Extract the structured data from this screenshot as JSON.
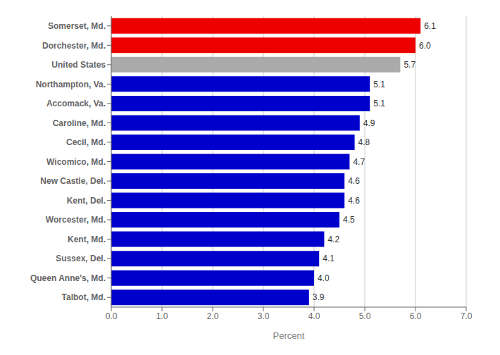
{
  "chart_data": {
    "type": "bar",
    "orientation": "horizontal",
    "categories": [
      "Talbot, Md.",
      "Queen Anne's, Md.",
      "Sussex, Del.",
      "Kent, Md.",
      "Worcester, Md.",
      "Kent, Del.",
      "New Castle, Del.",
      "Wicomico, Md.",
      "Cecil, Md.",
      "Caroline, Md.",
      "Accomack, Va.",
      "Northampton, Va.",
      "United States",
      "Dorchester, Md.",
      "Somerset, Md."
    ],
    "values": [
      3.9,
      4.0,
      4.1,
      4.2,
      4.5,
      4.6,
      4.6,
      4.7,
      4.8,
      4.9,
      5.1,
      5.1,
      5.7,
      6.0,
      6.1
    ],
    "value_labels": [
      "3.9",
      "4.0",
      "4.1",
      "4.2",
      "4.5",
      "4.6",
      "4.6",
      "4.7",
      "4.8",
      "4.9",
      "5.1",
      "5.1",
      "5.7",
      "6.0",
      "6.1"
    ],
    "data_labels": true,
    "colors": [
      "#0000cc",
      "#0000cc",
      "#0000cc",
      "#0000cc",
      "#0000cc",
      "#0000cc",
      "#0000cc",
      "#0000cc",
      "#0000cc",
      "#0000cc",
      "#0000cc",
      "#0000cc",
      "#aaaaaa",
      "#ee0000",
      "#ee0000"
    ],
    "xlabel": "Percent",
    "xlim": [
      0,
      7.0
    ],
    "xticks": [
      {
        "value": 0,
        "label": "0.0"
      },
      {
        "value": 1,
        "label": "1.0"
      },
      {
        "value": 2,
        "label": "2.0"
      },
      {
        "value": 3,
        "label": "3.0"
      },
      {
        "value": 4,
        "label": "4.0"
      },
      {
        "value": 5,
        "label": "5.0"
      },
      {
        "value": 6,
        "label": "6.0"
      },
      {
        "value": 7,
        "label": "7.0"
      }
    ],
    "grid": true
  }
}
